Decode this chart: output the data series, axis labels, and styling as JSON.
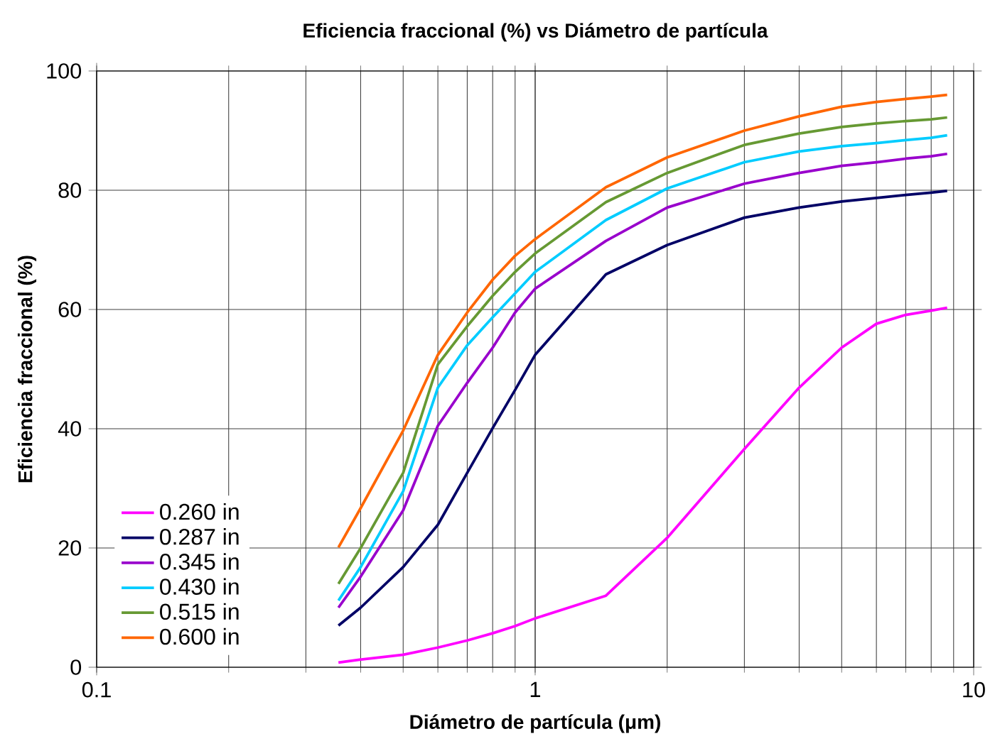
{
  "chart_data": {
    "type": "line",
    "title": "Eficiencia fraccional (%) vs Diámetro de partícula",
    "xlabel": "Diámetro de partícula (μm)",
    "ylabel": "Eficiencia fraccional (%)",
    "log": "x",
    "xlim": [
      0.1,
      10
    ],
    "xticks": [
      0.1,
      1,
      10
    ],
    "ylim": [
      0,
      100
    ],
    "yticks": [
      0,
      20,
      40,
      60,
      80,
      100
    ],
    "grid": true,
    "legend": "bottom left",
    "marker": "none",
    "line_style": "solid",
    "x": [
      0.356,
      0.4,
      0.5,
      0.6,
      0.7,
      0.8,
      0.9,
      1,
      1.45,
      2,
      3,
      4,
      5,
      6,
      7,
      8,
      8.7
    ],
    "series": [
      {
        "name": "0.260 in",
        "color": "#ff00ff",
        "values": [
          0.8,
          1.3,
          2.1,
          3.3,
          4.5,
          5.7,
          6.9,
          8.2,
          12,
          21.7,
          36.6,
          46.9,
          53.6,
          57.6,
          59.1,
          59.8,
          60.3
        ]
      },
      {
        "name": "0.287 in",
        "color": "#000066",
        "values": [
          7,
          10,
          16.8,
          23.9,
          32.6,
          40.1,
          46.5,
          52.4,
          65.9,
          70.8,
          75.4,
          77.1,
          78.1,
          78.7,
          79.2,
          79.6,
          79.9
        ]
      },
      {
        "name": "0.345 in",
        "color": "#9900cc",
        "values": [
          10,
          15.2,
          26.3,
          40.5,
          47.7,
          53.6,
          59.5,
          63.5,
          71.5,
          77.1,
          81.1,
          82.9,
          84.1,
          84.7,
          85.3,
          85.7,
          86.1
        ]
      },
      {
        "name": "0.430 in",
        "color": "#00ccff",
        "values": [
          11.2,
          16.8,
          29.5,
          46.9,
          54,
          58.7,
          62.7,
          66.3,
          75,
          80.3,
          84.7,
          86.5,
          87.4,
          87.9,
          88.4,
          88.8,
          89.2
        ]
      },
      {
        "name": "0.515 in",
        "color": "#669933",
        "values": [
          14,
          20,
          32.6,
          50.8,
          57.2,
          62.3,
          66.3,
          69.4,
          78,
          82.9,
          87.6,
          89.5,
          90.6,
          91.2,
          91.6,
          91.9,
          92.2
        ]
      },
      {
        "name": "0.600 in",
        "color": "#ff6600",
        "values": [
          20.1,
          26.7,
          39.7,
          52.4,
          59.5,
          65,
          69,
          71.8,
          80.5,
          85.5,
          90,
          92.4,
          94,
          94.8,
          95.3,
          95.7,
          96
        ]
      }
    ]
  }
}
